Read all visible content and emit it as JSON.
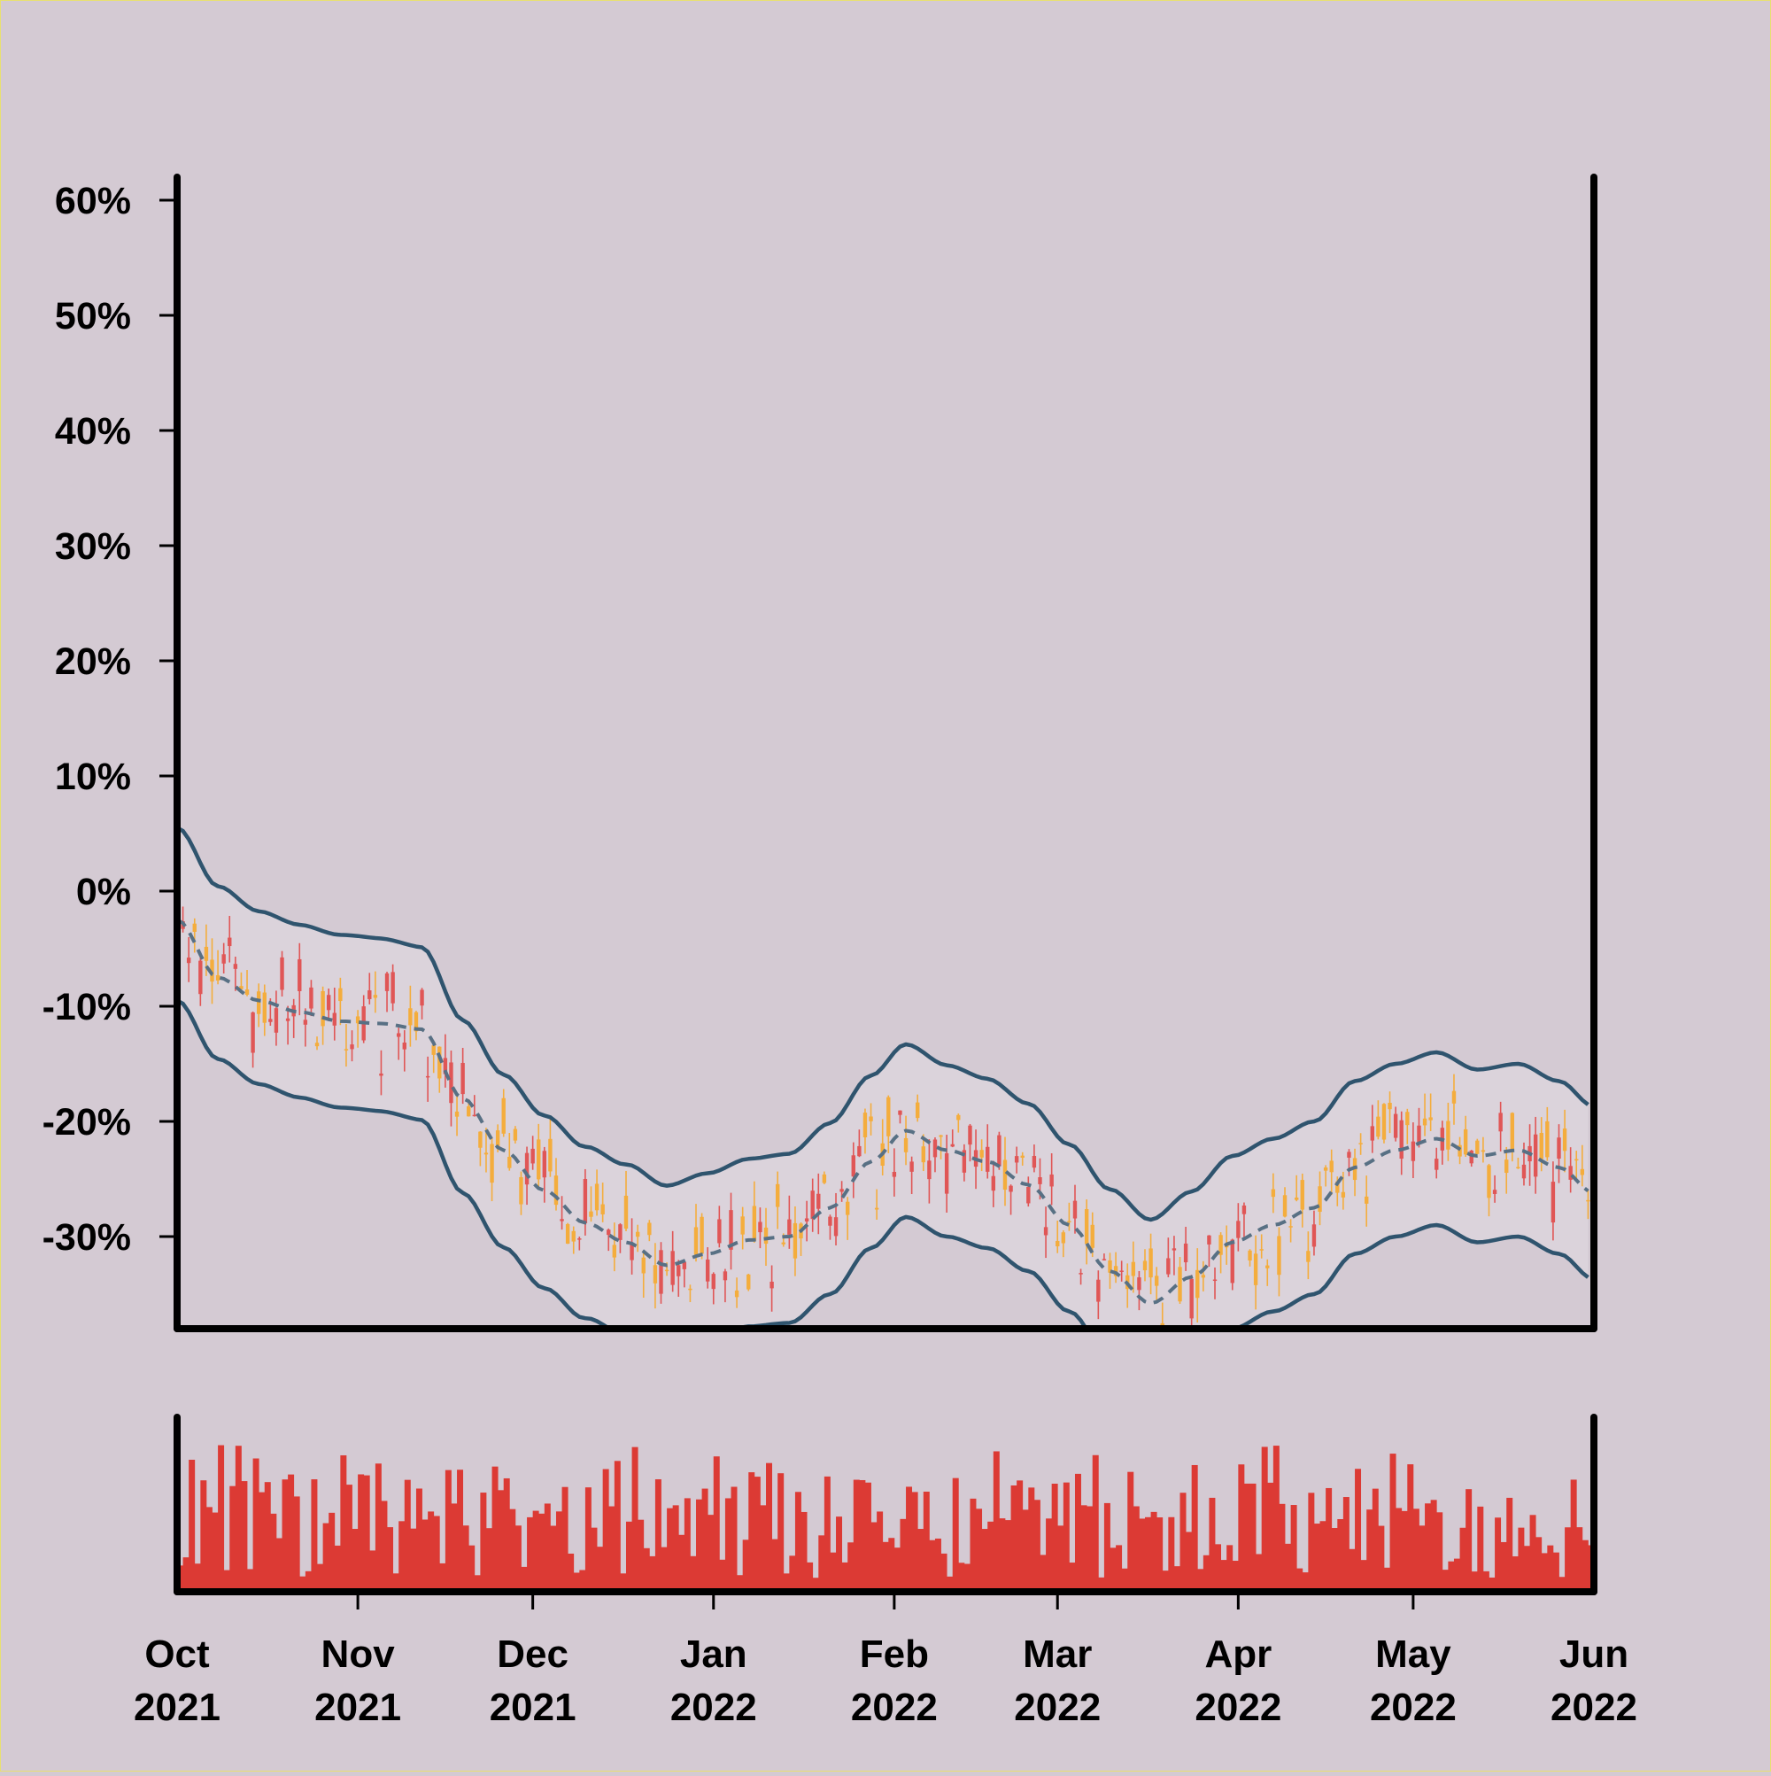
{
  "chart_data": {
    "type": "candlestick",
    "colors": {
      "background": "#d4cad3",
      "band_fill": "#dcd5dc",
      "band_line": "#2f546e",
      "mid_line": "#587084",
      "candle_up": "#f4ad3d",
      "candle_down": "#e05656",
      "volume": "#dc3a34",
      "axis": "#000000"
    },
    "y_axis": {
      "tick_values": [
        -30,
        -20,
        -10,
        0,
        10,
        20,
        30,
        40,
        50,
        60
      ],
      "tick_labels": [
        "-30%",
        "-20%",
        "-10%",
        "0%",
        "10%",
        "20%",
        "30%",
        "40%",
        "50%",
        "60%"
      ],
      "range": [
        -38,
        62
      ],
      "unit": "%"
    },
    "x_axis": {
      "range": [
        "2021-10-01",
        "2022-06-01"
      ],
      "ticks": [
        {
          "date": "2021-10-01",
          "month": "Oct",
          "year": "2021"
        },
        {
          "date": "2021-11-01",
          "month": "Nov",
          "year": "2021"
        },
        {
          "date": "2021-12-01",
          "month": "Dec",
          "year": "2021"
        },
        {
          "date": "2022-01-01",
          "month": "Jan",
          "year": "2022"
        },
        {
          "date": "2022-02-01",
          "month": "Feb",
          "year": "2022"
        },
        {
          "date": "2022-03-01",
          "month": "Mar",
          "year": "2022"
        },
        {
          "date": "2022-04-01",
          "month": "Apr",
          "year": "2022"
        },
        {
          "date": "2022-05-01",
          "month": "May",
          "year": "2022"
        },
        {
          "date": "2022-06-01",
          "month": "Jun",
          "year": "2022"
        }
      ]
    },
    "moving_average_anchors": [
      {
        "date": "2021-10-01",
        "value": -2.5
      },
      {
        "date": "2021-10-08",
        "value": -7.5
      },
      {
        "date": "2021-10-15",
        "value": -9.5
      },
      {
        "date": "2021-10-22",
        "value": -10.5
      },
      {
        "date": "2021-10-29",
        "value": -11.3
      },
      {
        "date": "2021-11-05",
        "value": -11.5
      },
      {
        "date": "2021-11-12",
        "value": -12.0
      },
      {
        "date": "2021-11-19",
        "value": -18.0
      },
      {
        "date": "2021-11-26",
        "value": -22.5
      },
      {
        "date": "2021-12-03",
        "value": -26.0
      },
      {
        "date": "2021-12-10",
        "value": -28.8
      },
      {
        "date": "2021-12-17",
        "value": -30.5
      },
      {
        "date": "2021-12-24",
        "value": -32.5
      },
      {
        "date": "2021-12-31",
        "value": -31.5
      },
      {
        "date": "2022-01-07",
        "value": -30.3
      },
      {
        "date": "2022-01-14",
        "value": -30.0
      },
      {
        "date": "2022-01-21",
        "value": -27.5
      },
      {
        "date": "2022-01-28",
        "value": -23.5
      },
      {
        "date": "2022-02-03",
        "value": -20.8
      },
      {
        "date": "2022-02-10",
        "value": -22.5
      },
      {
        "date": "2022-02-17",
        "value": -23.5
      },
      {
        "date": "2022-02-24",
        "value": -25.5
      },
      {
        "date": "2022-03-03",
        "value": -29.0
      },
      {
        "date": "2022-03-10",
        "value": -33.0
      },
      {
        "date": "2022-03-17",
        "value": -35.8
      },
      {
        "date": "2022-03-24",
        "value": -33.5
      },
      {
        "date": "2022-03-31",
        "value": -30.5
      },
      {
        "date": "2022-04-07",
        "value": -29.0
      },
      {
        "date": "2022-04-14",
        "value": -27.5
      },
      {
        "date": "2022-04-21",
        "value": -24.0
      },
      {
        "date": "2022-04-28",
        "value": -22.5
      },
      {
        "date": "2022-05-05",
        "value": -21.5
      },
      {
        "date": "2022-05-12",
        "value": -23.0
      },
      {
        "date": "2022-05-19",
        "value": -22.5
      },
      {
        "date": "2022-05-26",
        "value": -24.0
      },
      {
        "date": "2022-06-01",
        "value": -26.2
      }
    ],
    "band_offsets": {
      "upper": [
        {
          "date": "2021-10-01",
          "value": 8.0
        },
        {
          "date": "2021-10-29",
          "value": 7.5
        },
        {
          "date": "2021-12-01",
          "value": 6.5
        },
        {
          "date": "2022-01-01",
          "value": 7.0
        },
        {
          "date": "2022-02-01",
          "value": 7.5
        },
        {
          "date": "2022-03-01",
          "value": 7.0
        },
        {
          "date": "2022-04-01",
          "value": 7.5
        },
        {
          "date": "2022-06-01",
          "value": 7.5
        }
      ],
      "lower": [
        {
          "date": "2021-10-01",
          "value": -7.0
        },
        {
          "date": "2021-10-29",
          "value": -7.5
        },
        {
          "date": "2021-12-01",
          "value": -8.5
        },
        {
          "date": "2022-01-01",
          "value": -7.5
        },
        {
          "date": "2022-02-01",
          "value": -7.5
        },
        {
          "date": "2022-03-01",
          "value": -7.5
        },
        {
          "date": "2022-04-01",
          "value": -7.5
        },
        {
          "date": "2022-06-01",
          "value": -7.5
        }
      ]
    },
    "candles": {
      "count": 243,
      "note": "daily candles, values follow the moving average with noise"
    },
    "volume": {
      "count": 243,
      "relative_range": [
        0,
        1
      ]
    }
  }
}
